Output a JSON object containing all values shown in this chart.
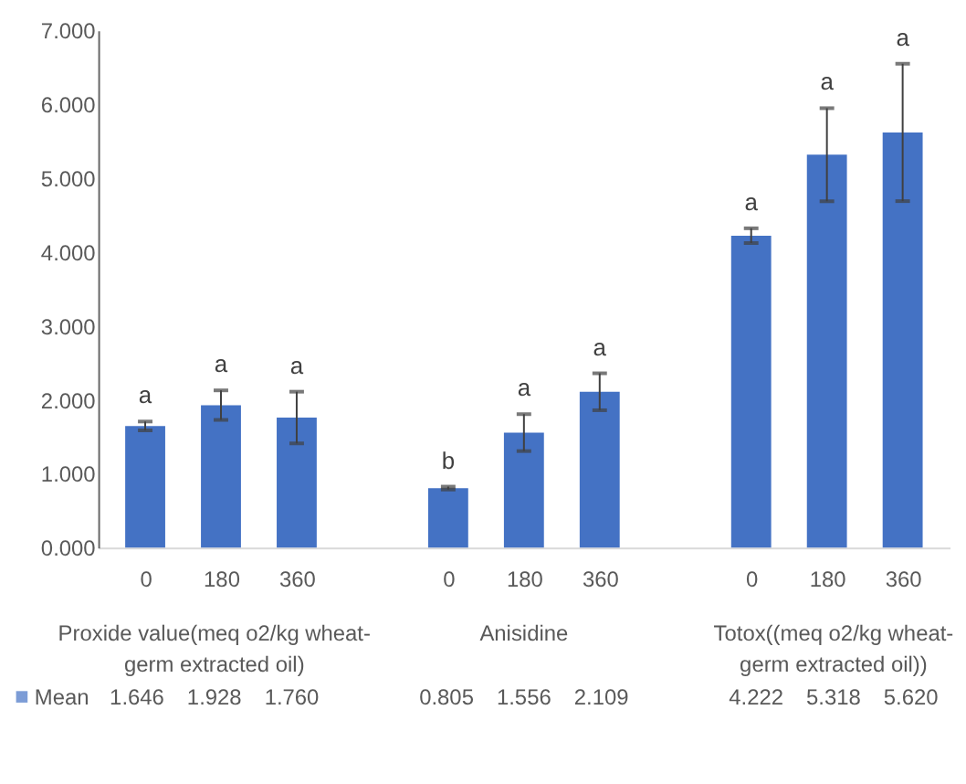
{
  "chart_data": {
    "type": "bar",
    "categories": [
      "0",
      "180",
      "360",
      null,
      "0",
      "180",
      "360",
      null,
      "0",
      "180",
      "360"
    ],
    "series": [
      {
        "name": "Mean",
        "color": "#4472c4",
        "values": [
          1.646,
          1.928,
          1.76,
          null,
          0.805,
          1.556,
          2.109,
          null,
          4.222,
          5.318,
          5.62
        ],
        "errors": [
          0.06,
          0.2,
          0.35,
          null,
          0.02,
          0.25,
          0.25,
          null,
          0.1,
          0.63,
          0.93
        ],
        "value_labels": [
          "1.646",
          "1.928",
          "1.760",
          null,
          "0.805",
          "1.556",
          "2.109",
          null,
          "4.222",
          "5.318",
          "5.620"
        ]
      }
    ],
    "ylim": [
      0,
      7
    ],
    "yticks": [
      {
        "value": 0,
        "label": "0.000"
      },
      {
        "value": 1,
        "label": "1.000"
      },
      {
        "value": 2,
        "label": "2.000"
      },
      {
        "value": 3,
        "label": "3.000"
      },
      {
        "value": 4,
        "label": "4.000"
      },
      {
        "value": 5,
        "label": "5.000"
      },
      {
        "value": 6,
        "label": "6.000"
      },
      {
        "value": 7,
        "label": "7.000"
      }
    ],
    "annotations": [
      "Proxide value(meq o2/kg wheat-germ extracted oil)",
      "Anisidine",
      "Totox((meq o2/kg wheat-germ extracted oil))",
      "a",
      "a",
      "a",
      "b",
      "a",
      "a",
      "a",
      "a",
      "a"
    ],
    "legend": "bottom",
    "grid": false
  }
}
